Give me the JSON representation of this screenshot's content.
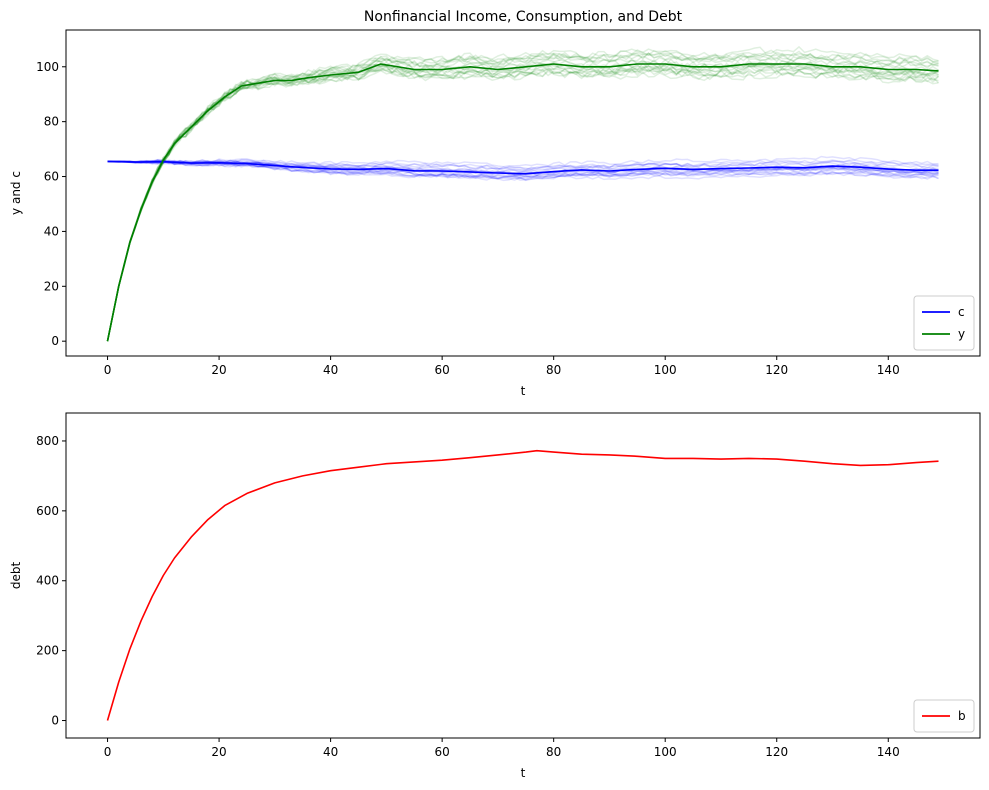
{
  "chart_data": [
    {
      "type": "line",
      "title": "Nonfinancial Income, Consumption, and Debt",
      "xlabel": "t",
      "ylabel": "y and c",
      "xlim": [
        -7.45,
        156.45
      ],
      "ylim": [
        -5.4,
        113.4
      ],
      "xticks": [
        0,
        20,
        40,
        60,
        80,
        100,
        120,
        140
      ],
      "yticks": [
        0,
        20,
        40,
        60,
        80,
        100
      ],
      "grid": false,
      "legend_position": "lower-right",
      "series": [
        {
          "name": "c",
          "color": "#0000ff",
          "x": [
            0,
            5,
            10,
            15,
            20,
            25,
            30,
            35,
            40,
            45,
            50,
            55,
            60,
            65,
            70,
            75,
            80,
            85,
            90,
            95,
            100,
            105,
            110,
            115,
            120,
            125,
            130,
            135,
            140,
            145,
            149
          ],
          "y": [
            65.5,
            65.3,
            65.4,
            64.9,
            65.0,
            64.7,
            64.0,
            63.3,
            62.8,
            62.6,
            62.9,
            62.1,
            62.0,
            61.7,
            61.3,
            61.0,
            61.8,
            62.4,
            62.0,
            62.6,
            63.0,
            62.6,
            62.9,
            63.1,
            63.4,
            63.2,
            63.8,
            63.4,
            62.7,
            62.3,
            62.3
          ]
        },
        {
          "name": "y",
          "color": "#008000",
          "x": [
            0,
            2,
            4,
            6,
            8,
            10,
            12,
            15,
            18,
            21,
            24,
            27,
            30,
            33,
            36,
            40,
            45,
            49,
            55,
            60,
            65,
            70,
            75,
            80,
            85,
            90,
            95,
            100,
            105,
            110,
            115,
            120,
            125,
            130,
            135,
            140,
            145,
            149
          ],
          "y": [
            0,
            20,
            36,
            48,
            58,
            66,
            72,
            78,
            84,
            89,
            93,
            94,
            95,
            95,
            96,
            97,
            98,
            101,
            99,
            99,
            100,
            99,
            100,
            101,
            100,
            100,
            101,
            101,
            100,
            100,
            101,
            101,
            101,
            100,
            100,
            99,
            99,
            98.5
          ]
        }
      ]
    },
    {
      "type": "line",
      "title": "",
      "xlabel": "t",
      "ylabel": "debt",
      "xlim": [
        -7.45,
        156.45
      ],
      "ylim": [
        -50,
        880
      ],
      "xticks": [
        0,
        20,
        40,
        60,
        80,
        100,
        120,
        140
      ],
      "yticks": [
        0,
        200,
        400,
        600,
        800
      ],
      "grid": false,
      "legend_position": "lower-right",
      "series": [
        {
          "name": "b",
          "color": "#ff0000",
          "x": [
            0,
            2,
            4,
            6,
            8,
            10,
            12,
            15,
            18,
            21,
            25,
            30,
            35,
            40,
            45,
            50,
            55,
            60,
            65,
            70,
            75,
            77,
            80,
            85,
            90,
            95,
            100,
            105,
            110,
            115,
            120,
            125,
            130,
            135,
            140,
            145,
            149
          ],
          "y": [
            0,
            110,
            205,
            285,
            355,
            415,
            465,
            525,
            575,
            615,
            650,
            680,
            700,
            715,
            725,
            735,
            740,
            745,
            752,
            760,
            768,
            772,
            768,
            762,
            760,
            756,
            750,
            750,
            748,
            750,
            748,
            742,
            735,
            730,
            732,
            738,
            742
          ]
        }
      ]
    }
  ]
}
